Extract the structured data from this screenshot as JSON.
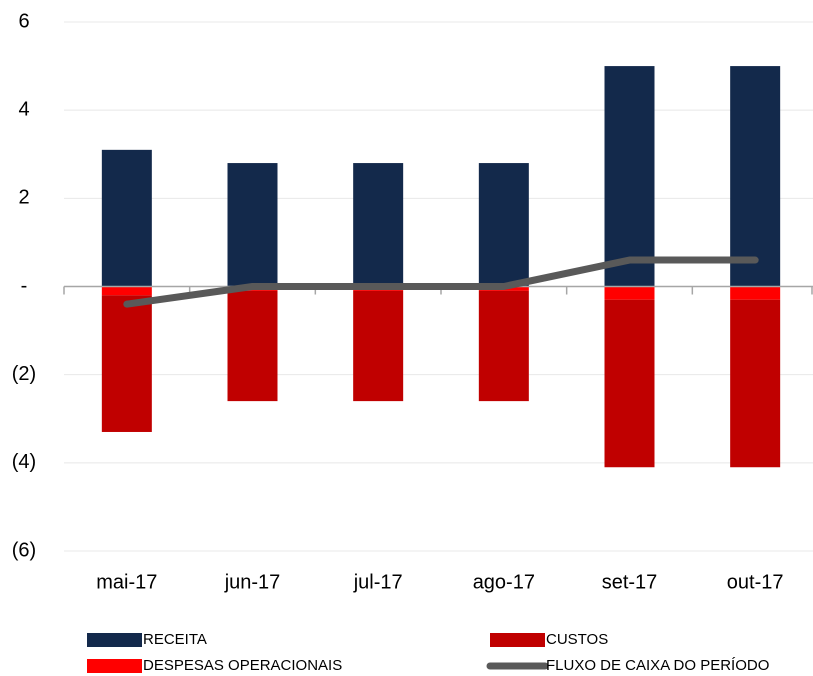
{
  "chart_data": {
    "type": "bar",
    "categories": [
      "mai-17",
      "jun-17",
      "jul-17",
      "ago-17",
      "set-17",
      "out-17"
    ],
    "series": [
      {
        "name": "RECEITA",
        "color": "#13294b",
        "values": [
          3.1,
          2.8,
          2.8,
          2.8,
          5.0,
          5.0
        ]
      },
      {
        "name": "CUSTOS",
        "color": "#c00000",
        "values": [
          -3.1,
          -2.5,
          -2.5,
          -2.5,
          -3.8,
          -3.8
        ]
      },
      {
        "name": "DESPESAS OPERACIONAIS",
        "color": "#ff0000",
        "values": [
          -0.2,
          -0.1,
          -0.1,
          -0.1,
          -0.3,
          -0.3
        ]
      },
      {
        "name": "FLUXO DE CAIXA DO PERÍODO",
        "color": "#595959",
        "type": "line",
        "values": [
          -0.4,
          0,
          0,
          0,
          0.6,
          0.6
        ]
      }
    ],
    "stacked": true,
    "ylim": [
      -6,
      6
    ],
    "yticks": [
      {
        "value": -6,
        "label": "(6)"
      },
      {
        "value": -4,
        "label": "(4)"
      },
      {
        "value": -2,
        "label": "(2)"
      },
      {
        "value": 0,
        "label": "-"
      },
      2,
      4,
      6
    ],
    "grid": true,
    "legend": "bottom"
  }
}
